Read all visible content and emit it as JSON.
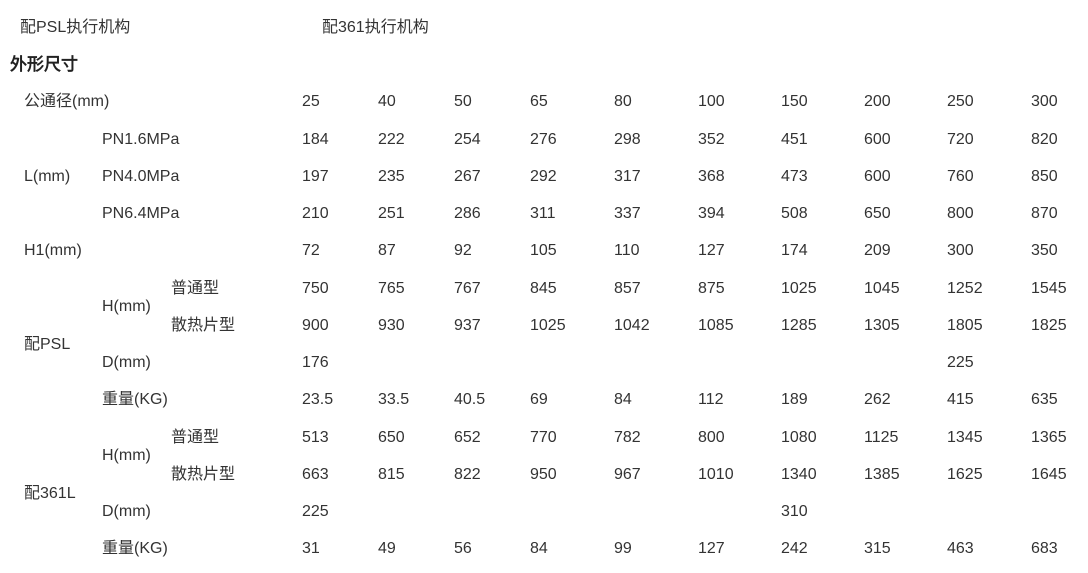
{
  "header": {
    "psl_actuator": "配PSL执行机构",
    "actuator_361": "配361执行机构"
  },
  "section_title": "外形尺寸",
  "labels": {
    "nominal_diameter": "公通径(mm)",
    "L": "L(mm)",
    "pn16": "PN1.6MPa",
    "pn40": "PN4.0MPa",
    "pn64": "PN6.4MPa",
    "H1": "H1(mm)",
    "psl_group": "配PSL",
    "psl_H": "H(mm)",
    "psl_normal": "普通型",
    "psl_fin": "散热片型",
    "psl_D": "D(mm)",
    "psl_weight": "重量(KG)",
    "l361_group": "配361L",
    "l361_H": "H(mm)",
    "l361_normal": "普通型",
    "l361_fin": "散热片型",
    "l361_D": "D(mm)",
    "l361_weight": "重量(KG)"
  },
  "rows": [
    [
      "25",
      "40",
      "50",
      "65",
      "80",
      "100",
      "150",
      "200",
      "250",
      "300"
    ],
    [
      "184",
      "222",
      "254",
      "276",
      "298",
      "352",
      "451",
      "600",
      "720",
      "820"
    ],
    [
      "197",
      "235",
      "267",
      "292",
      "317",
      "368",
      "473",
      "600",
      "760",
      "850"
    ],
    [
      "210",
      "251",
      "286",
      "311",
      "337",
      "394",
      "508",
      "650",
      "800",
      "870"
    ],
    [
      "72",
      "87",
      "92",
      "105",
      "110",
      "127",
      "174",
      "209",
      "300",
      "350"
    ],
    [
      "750",
      "765",
      "767",
      "845",
      "857",
      "875",
      "1025",
      "1045",
      "1252",
      "1545"
    ],
    [
      "900",
      "930",
      "937",
      "1025",
      "1042",
      "1085",
      "1285",
      "1305",
      "1805",
      "1825"
    ],
    [
      "176",
      "",
      "",
      "",
      "",
      "",
      "",
      "",
      "225",
      ""
    ],
    [
      "23.5",
      "33.5",
      "40.5",
      "69",
      "84",
      "112",
      "189",
      "262",
      "415",
      "635"
    ],
    [
      "513",
      "650",
      "652",
      "770",
      "782",
      "800",
      "1080",
      "1125",
      "1345",
      "1365"
    ],
    [
      "663",
      "815",
      "822",
      "950",
      "967",
      "1010",
      "1340",
      "1385",
      "1625",
      "1645"
    ],
    [
      "225",
      "",
      "",
      "",
      "",
      "",
      "310",
      "",
      "",
      ""
    ],
    [
      "31",
      "49",
      "56",
      "84",
      "99",
      "127",
      "242",
      "315",
      "463",
      "683"
    ]
  ]
}
